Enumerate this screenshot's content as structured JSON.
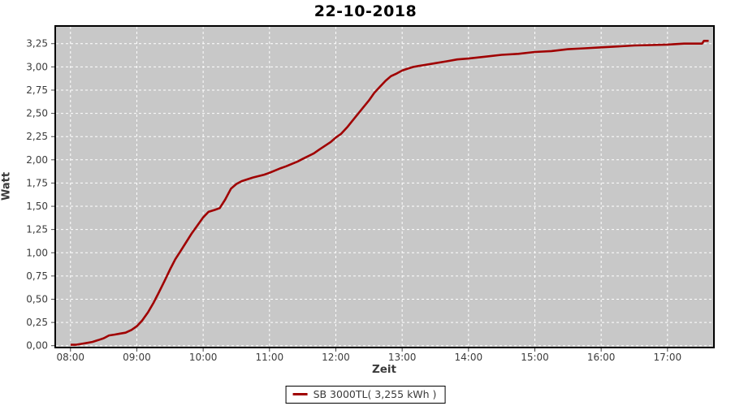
{
  "title": "22-10-2018",
  "chart_data": {
    "type": "line",
    "title": "22-10-2018",
    "xlabel": "Zeit",
    "ylabel": "Watt",
    "x_tick_hours": [
      8,
      9,
      10,
      11,
      12,
      13,
      14,
      15,
      16,
      17
    ],
    "x_tick_labels": [
      "08:00",
      "09:00",
      "10:00",
      "11:00",
      "12:00",
      "13:00",
      "14:00",
      "15:00",
      "16:00",
      "17:00"
    ],
    "y_tick_values": [
      0,
      0.25,
      0.5,
      0.75,
      1.0,
      1.25,
      1.5,
      1.75,
      2.0,
      2.25,
      2.5,
      2.75,
      3.0,
      3.25
    ],
    "y_tick_labels": [
      "0,00",
      "0,25",
      "0,50",
      "0,75",
      "1,00",
      "1,25",
      "1,50",
      "1,75",
      "2,00",
      "2,25",
      "2,50",
      "2,75",
      "3,00",
      "3,25"
    ],
    "xlim_hours": [
      7.77,
      17.7
    ],
    "ylim": [
      -0.02,
      3.44
    ],
    "grid": true,
    "plot_bg_color": "#c8c8c8",
    "grid_color": "#ffffff",
    "border_color": "#000000",
    "tick_color": "#444444",
    "tick_label_color": "#3c3c3c",
    "legend_position": "bottom-center",
    "legend": {
      "label": "SB 3000TL( 3,255 kWh )",
      "swatch_color": "#a00000"
    },
    "series": [
      {
        "name": "SB 3000TL( 3,255 kWh )",
        "color": "#a00000",
        "points": [
          [
            8.0,
            0.01
          ],
          [
            8.08,
            0.01
          ],
          [
            8.17,
            0.02
          ],
          [
            8.25,
            0.03
          ],
          [
            8.33,
            0.04
          ],
          [
            8.42,
            0.06
          ],
          [
            8.5,
            0.08
          ],
          [
            8.58,
            0.11
          ],
          [
            8.67,
            0.12
          ],
          [
            8.75,
            0.13
          ],
          [
            8.83,
            0.14
          ],
          [
            8.92,
            0.17
          ],
          [
            9.0,
            0.21
          ],
          [
            9.08,
            0.27
          ],
          [
            9.17,
            0.36
          ],
          [
            9.25,
            0.46
          ],
          [
            9.33,
            0.57
          ],
          [
            9.42,
            0.7
          ],
          [
            9.5,
            0.82
          ],
          [
            9.58,
            0.93
          ],
          [
            9.67,
            1.03
          ],
          [
            9.75,
            1.12
          ],
          [
            9.83,
            1.21
          ],
          [
            9.92,
            1.3
          ],
          [
            10.0,
            1.38
          ],
          [
            10.08,
            1.44
          ],
          [
            10.17,
            1.46
          ],
          [
            10.25,
            1.48
          ],
          [
            10.33,
            1.57
          ],
          [
            10.42,
            1.69
          ],
          [
            10.5,
            1.74
          ],
          [
            10.58,
            1.77
          ],
          [
            10.75,
            1.81
          ],
          [
            10.92,
            1.84
          ],
          [
            11.0,
            1.86
          ],
          [
            11.17,
            1.91
          ],
          [
            11.25,
            1.93
          ],
          [
            11.42,
            1.98
          ],
          [
            11.5,
            2.01
          ],
          [
            11.67,
            2.07
          ],
          [
            11.75,
            2.11
          ],
          [
            11.92,
            2.19
          ],
          [
            12.0,
            2.24
          ],
          [
            12.08,
            2.28
          ],
          [
            12.17,
            2.35
          ],
          [
            12.25,
            2.42
          ],
          [
            12.33,
            2.49
          ],
          [
            12.42,
            2.57
          ],
          [
            12.5,
            2.64
          ],
          [
            12.58,
            2.72
          ],
          [
            12.67,
            2.79
          ],
          [
            12.75,
            2.85
          ],
          [
            12.83,
            2.9
          ],
          [
            12.92,
            2.93
          ],
          [
            13.0,
            2.96
          ],
          [
            13.08,
            2.98
          ],
          [
            13.17,
            3.0
          ],
          [
            13.25,
            3.01
          ],
          [
            13.33,
            3.02
          ],
          [
            13.5,
            3.04
          ],
          [
            13.67,
            3.06
          ],
          [
            13.83,
            3.08
          ],
          [
            14.0,
            3.09
          ],
          [
            14.25,
            3.11
          ],
          [
            14.5,
            3.13
          ],
          [
            14.75,
            3.14
          ],
          [
            15.0,
            3.16
          ],
          [
            15.25,
            3.17
          ],
          [
            15.5,
            3.19
          ],
          [
            15.75,
            3.2
          ],
          [
            16.0,
            3.21
          ],
          [
            16.25,
            3.22
          ],
          [
            16.5,
            3.23
          ],
          [
            16.75,
            3.235
          ],
          [
            17.0,
            3.24
          ],
          [
            17.25,
            3.25
          ],
          [
            17.45,
            3.25
          ],
          [
            17.52,
            3.25
          ],
          [
            17.55,
            3.28
          ],
          [
            17.62,
            3.28
          ]
        ]
      }
    ]
  }
}
